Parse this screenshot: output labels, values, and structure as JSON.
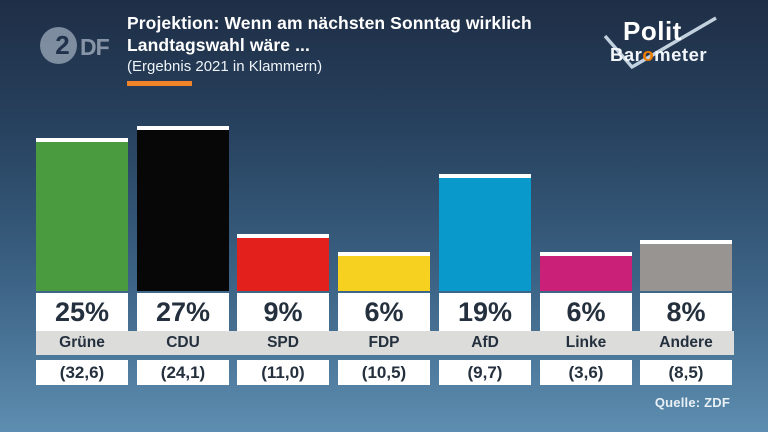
{
  "header": {
    "title_line1": "Projektion: Wenn am nächsten Sonntag wirklich",
    "title_line2": "Landtagswahl wäre ...",
    "subtitle": "(Ergebnis 2021 in Klammern)"
  },
  "branding": {
    "zdf_circle_digit": "2",
    "zdf_letters": "DF",
    "polit": "Polit",
    "barometer_prefix": "Bar",
    "barometer_o": "o",
    "barometer_suffix": "meter"
  },
  "source_label": "Quelle: ZDF",
  "colors": {
    "accent_orange": "#f08228",
    "barometer_o_orange": "#ef7d00",
    "band_bg": "#dcdcda",
    "dark_text": "#24303d",
    "bg_top": "#1f2e46",
    "bg_bottom": "#5d8db0"
  },
  "parties": [
    {
      "name": "Grüne",
      "value": 25,
      "value_label": "25%",
      "previous": "(32,6)",
      "color": "#4a9b3f"
    },
    {
      "name": "CDU",
      "value": 27,
      "value_label": "27%",
      "previous": "(24,1)",
      "color": "#070707"
    },
    {
      "name": "SPD",
      "value": 9,
      "value_label": "9%",
      "previous": "(11,0)",
      "color": "#e3201b"
    },
    {
      "name": "FDP",
      "value": 6,
      "value_label": "6%",
      "previous": "(10,5)",
      "color": "#f7d120"
    },
    {
      "name": "AfD",
      "value": 19,
      "value_label": "19%",
      "previous": "(9,7)",
      "color": "#0999cb"
    },
    {
      "name": "Linke",
      "value": 6,
      "value_label": "6%",
      "previous": "(3,6)",
      "color": "#cb2077"
    },
    {
      "name": "Andere",
      "value": 8,
      "value_label": "8%",
      "previous": "(8,5)",
      "color": "#979492"
    }
  ],
  "chart_data": {
    "type": "bar",
    "title": "Projektion: Wenn am nächsten Sonntag wirklich Landtagswahl wäre ...",
    "subtitle": "(Ergebnis 2021 in Klammern)",
    "categories": [
      "Grüne",
      "CDU",
      "SPD",
      "FDP",
      "AfD",
      "Linke",
      "Andere"
    ],
    "series": [
      {
        "name": "Projektion",
        "unit": "%",
        "values": [
          25,
          27,
          9,
          6,
          19,
          6,
          8
        ]
      },
      {
        "name": "Ergebnis 2021",
        "unit": "%",
        "values": [
          32.6,
          24.1,
          11.0,
          10.5,
          9.7,
          3.6,
          8.5
        ]
      }
    ],
    "value_labels": [
      "25%",
      "27%",
      "9%",
      "6%",
      "19%",
      "6%",
      "8%"
    ],
    "previous_labels": [
      "(32,6)",
      "(24,1)",
      "(11,0)",
      "(10,5)",
      "(9,7)",
      "(3,6)",
      "(8,5)"
    ],
    "bar_colors": [
      "#4a9b3f",
      "#070707",
      "#e3201b",
      "#f7d120",
      "#0999cb",
      "#cb2077",
      "#979492"
    ],
    "ylim": [
      0,
      30
    ],
    "grid": false,
    "legend_position": "none",
    "source": "Quelle: ZDF"
  }
}
